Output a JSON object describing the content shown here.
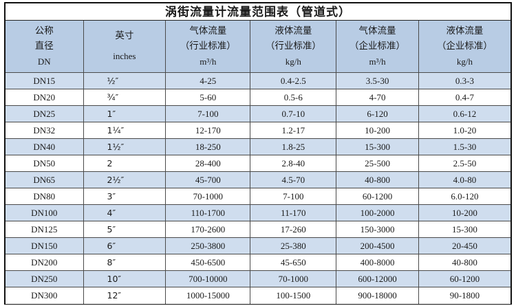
{
  "title": "涡街流量计流量范围表（管道式）",
  "header": {
    "col1": {
      "line1": "公称",
      "line2": "直径",
      "line3": "DN"
    },
    "col2": {
      "line1": "英寸",
      "line2": "inches"
    },
    "col3": {
      "line1": "气体流量",
      "line2": "（行业标准）",
      "line3": "m³/h"
    },
    "col4": {
      "line1": "液体流量",
      "line2": "（行业标准）",
      "line3": "kg/h"
    },
    "col5": {
      "line1": "气体流量",
      "line2": "（企业标准）",
      "line3": "m³/h"
    },
    "col6": {
      "line1": "液体流量",
      "line2": "（企业标准）",
      "line3": "kg/h"
    }
  },
  "rows": [
    {
      "dn": "DN15",
      "inches": "½″",
      "gas_industry": "4-25",
      "liquid_industry": "0.4-2.5",
      "gas_enterprise": "3.5-30",
      "liquid_enterprise": "0.3-3"
    },
    {
      "dn": "DN20",
      "inches": "¾″",
      "gas_industry": "5-60",
      "liquid_industry": "0.5-6",
      "gas_enterprise": "4-70",
      "liquid_enterprise": "0.4-7"
    },
    {
      "dn": "DN25",
      "inches": "1″",
      "gas_industry": "7-100",
      "liquid_industry": "0.7-10",
      "gas_enterprise": "6-120",
      "liquid_enterprise": "0.6-12"
    },
    {
      "dn": "DN32",
      "inches": "1¼″",
      "gas_industry": "12-170",
      "liquid_industry": "1.2-17",
      "gas_enterprise": "10-200",
      "liquid_enterprise": "1.0-20"
    },
    {
      "dn": "DN40",
      "inches": "1½″",
      "gas_industry": "18-250",
      "liquid_industry": "1.8-25",
      "gas_enterprise": "15-300",
      "liquid_enterprise": "1.5-30"
    },
    {
      "dn": "DN50",
      "inches": "2",
      "gas_industry": "28-400",
      "liquid_industry": "2.8-40",
      "gas_enterprise": "25-500",
      "liquid_enterprise": "2.5-50"
    },
    {
      "dn": "DN65",
      "inches": "2½″",
      "gas_industry": "45-700",
      "liquid_industry": "4.5-70",
      "gas_enterprise": "40-800",
      "liquid_enterprise": "4.0-80"
    },
    {
      "dn": "DN80",
      "inches": "3″",
      "gas_industry": "70-1000",
      "liquid_industry": "7-100",
      "gas_enterprise": "60-1200",
      "liquid_enterprise": "6.0-120"
    },
    {
      "dn": "DN100",
      "inches": "4″",
      "gas_industry": "110-1700",
      "liquid_industry": "11-170",
      "gas_enterprise": "100-2000",
      "liquid_enterprise": "10-200"
    },
    {
      "dn": "DN125",
      "inches": "5″",
      "gas_industry": "170-2600",
      "liquid_industry": "17-260",
      "gas_enterprise": "150-3000",
      "liquid_enterprise": "15-300"
    },
    {
      "dn": "DN150",
      "inches": "6″",
      "gas_industry": "250-3800",
      "liquid_industry": "25-380",
      "gas_enterprise": "200-4500",
      "liquid_enterprise": "20-450"
    },
    {
      "dn": "DN200",
      "inches": "8″",
      "gas_industry": "450-6500",
      "liquid_industry": "45-650",
      "gas_enterprise": "400-8000",
      "liquid_enterprise": "40-800"
    },
    {
      "dn": "DN250",
      "inches": "10″",
      "gas_industry": "700-10000",
      "liquid_industry": "70-1000",
      "gas_enterprise": "600-12000",
      "liquid_enterprise": "60-1200"
    },
    {
      "dn": "DN300",
      "inches": "12″",
      "gas_industry": "1000-15000",
      "liquid_industry": "100-1500",
      "gas_enterprise": "900-18000",
      "liquid_enterprise": "90-1800"
    }
  ],
  "colors": {
    "header_bg": "#b8cce4",
    "stripe_bg": "#cfddee",
    "border": "#111111"
  }
}
